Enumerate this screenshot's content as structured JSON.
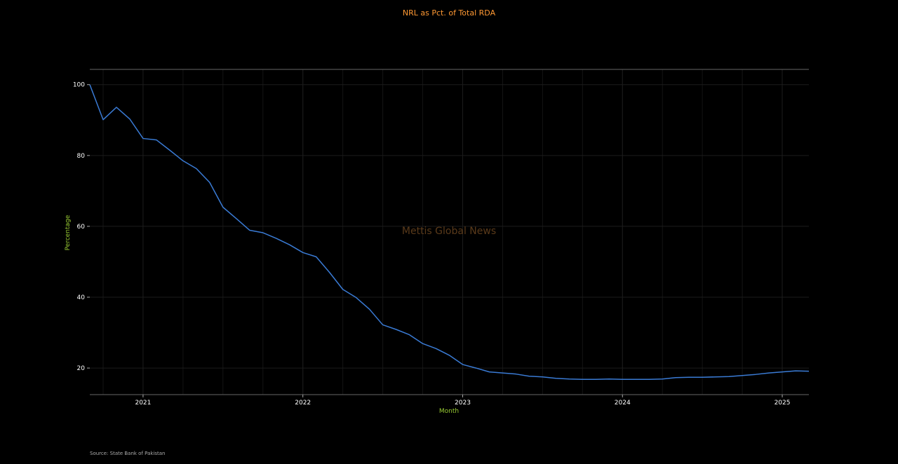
{
  "chart_data": {
    "type": "line",
    "title": "NRL as Pct. of Total RDA",
    "xlabel": "Month",
    "ylabel": "Percentage",
    "watermark": "Mettis Global News",
    "source": "Source: State Bank of Pakistan",
    "colors": {
      "background": "#000000",
      "title": "#ff9933",
      "axis_label": "#99cc33",
      "line": "#3a7bd5",
      "watermark": "#5a3a1a",
      "grid": "#1c1c1c",
      "axis": "#666666"
    },
    "grid": true,
    "xlim": [
      "2020-09",
      "2025-03"
    ],
    "ylim": [
      12.5,
      104.3
    ],
    "x_ticks": [
      {
        "value": "2021-01",
        "label": "2021"
      },
      {
        "value": "2022-01",
        "label": "2022"
      },
      {
        "value": "2023-01",
        "label": "2023"
      },
      {
        "value": "2024-01",
        "label": "2024"
      },
      {
        "value": "2025-01",
        "label": "2025"
      }
    ],
    "y_ticks": [
      20,
      40,
      60,
      80,
      100
    ],
    "series": [
      {
        "x": [
          "2020-09",
          "2020-10",
          "2020-11",
          "2020-12",
          "2021-01",
          "2021-02",
          "2021-03",
          "2021-04",
          "2021-05",
          "2021-06",
          "2021-07",
          "2021-08",
          "2021-09",
          "2021-10",
          "2021-11",
          "2021-12",
          "2022-01",
          "2022-02",
          "2022-03",
          "2022-04",
          "2022-05",
          "2022-06",
          "2022-07",
          "2022-08",
          "2022-09",
          "2022-10",
          "2022-11",
          "2022-12",
          "2023-01",
          "2023-02",
          "2023-03",
          "2023-04",
          "2023-05",
          "2023-06",
          "2023-07",
          "2023-08",
          "2023-09",
          "2023-10",
          "2023-11",
          "2023-12",
          "2024-01",
          "2024-02",
          "2024-03",
          "2024-04",
          "2024-05",
          "2024-06",
          "2024-07",
          "2024-08",
          "2024-09",
          "2024-10",
          "2024-11",
          "2024-12",
          "2025-01",
          "2025-02",
          "2025-03"
        ],
        "values": [
          100.0,
          90.1,
          93.6,
          90.3,
          84.8,
          84.4,
          81.5,
          78.5,
          76.3,
          72.4,
          65.4,
          62.2,
          58.9,
          58.2,
          56.6,
          54.8,
          52.6,
          51.4,
          47.0,
          42.2,
          39.9,
          36.6,
          32.2,
          30.9,
          29.4,
          26.9,
          25.5,
          23.6,
          21.0,
          20.0,
          18.9,
          18.6,
          18.3,
          17.7,
          17.5,
          17.1,
          16.9,
          16.8,
          16.8,
          16.9,
          16.8,
          16.8,
          16.8,
          16.9,
          17.3,
          17.4,
          17.4,
          17.5,
          17.6,
          17.9,
          18.2,
          18.6,
          18.9,
          19.2,
          19.1
        ]
      }
    ]
  }
}
